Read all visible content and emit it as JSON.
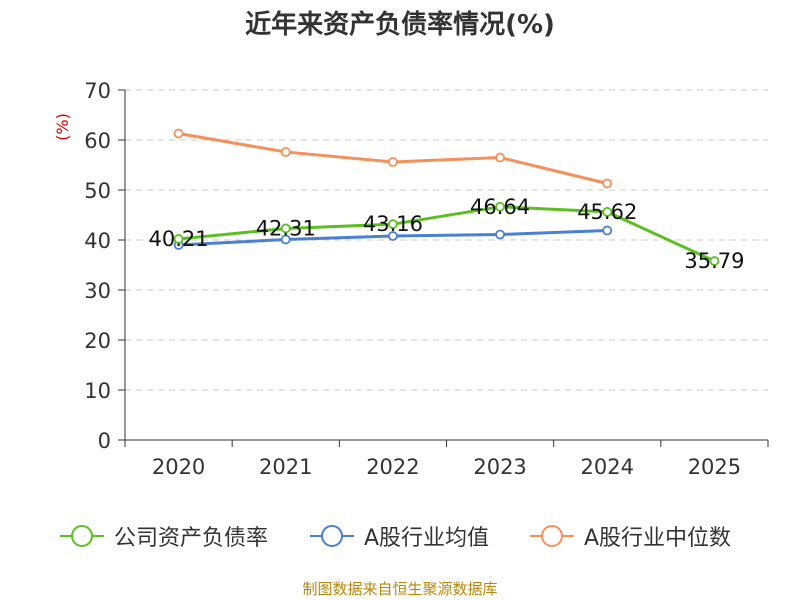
{
  "chart_data": {
    "type": "line",
    "title": "近年来资产负债率情况(%)",
    "ylabel": "(%)",
    "xlabel": "",
    "categories": [
      "2020",
      "2021",
      "2022",
      "2023",
      "2024",
      "2025"
    ],
    "ylim": [
      0,
      70
    ],
    "yticks": [
      0,
      10,
      20,
      30,
      40,
      50,
      60,
      70
    ],
    "grid": true,
    "legend_position": "bottom",
    "series": [
      {
        "name": "公司资产负债率",
        "color": "#5bbf21",
        "values": [
          40.21,
          42.31,
          43.16,
          46.64,
          45.62,
          35.79
        ],
        "show_labels": true
      },
      {
        "name": "A股行业均值",
        "color": "#4a7fd6",
        "values": [
          39.0,
          40.1,
          40.8,
          41.1,
          41.9,
          null
        ],
        "show_labels": false
      },
      {
        "name": "A股行业中位数",
        "color": "#f5905a",
        "values": [
          61.3,
          57.6,
          55.6,
          56.5,
          51.3,
          null
        ],
        "show_labels": false
      }
    ]
  },
  "source": "制图数据来自恒生聚源数据库"
}
